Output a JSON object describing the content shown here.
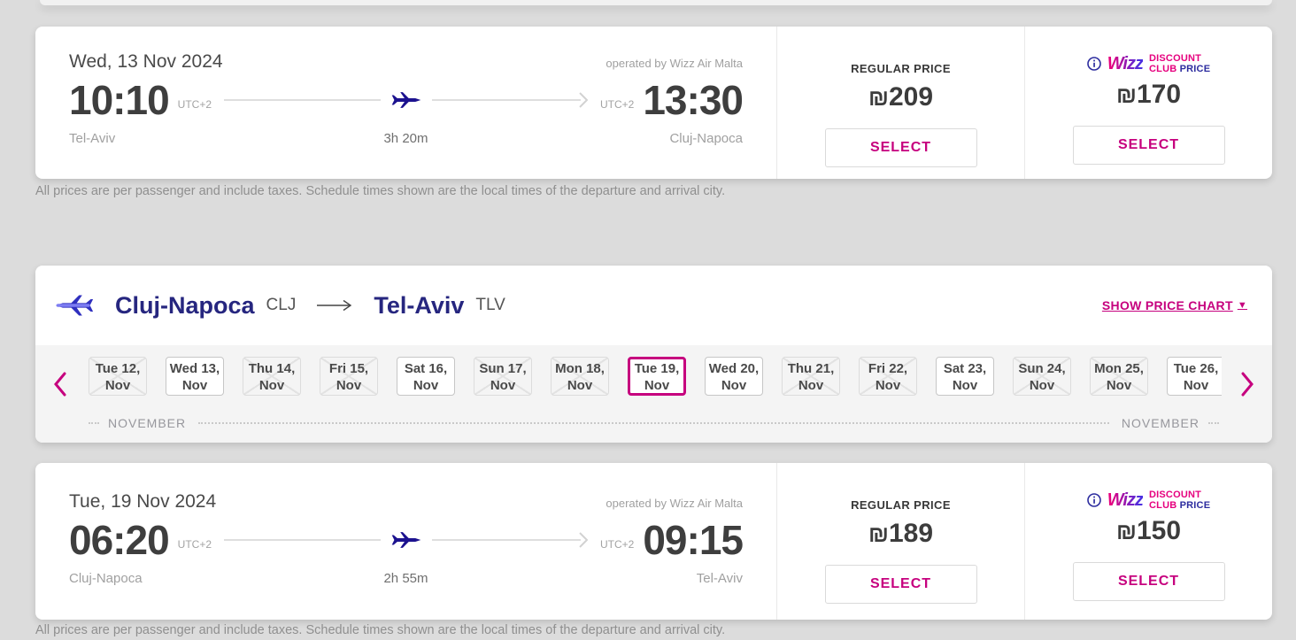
{
  "disclaimer": {
    "text": "All prices are per passenger and include taxes. Schedule times shown are the local times of the departure and arrival city."
  },
  "flights": [
    {
      "date": "Wed, 13 Nov 2024",
      "operated_by": "operated by Wizz Air Malta",
      "departure": {
        "time": "10:10",
        "utc": "UTC+2",
        "city": "Tel-Aviv"
      },
      "arrival": {
        "time": "13:30",
        "utc": "UTC+2",
        "city": "Cluj-Napoca"
      },
      "duration": "3h 20m",
      "regular": {
        "label": "REGULAR PRICE",
        "currency": "₪",
        "amount": "209",
        "select": "SELECT"
      },
      "club": {
        "wizz": "Wizz",
        "discount": "DISCOUNT",
        "club_word": "CLUB",
        "price_word": "PRICE",
        "currency": "₪",
        "amount": "170",
        "select": "SELECT"
      }
    },
    {
      "date": "Tue, 19 Nov 2024",
      "operated_by": "operated by Wizz Air Malta",
      "departure": {
        "time": "06:20",
        "utc": "UTC+2",
        "city": "Cluj-Napoca"
      },
      "arrival": {
        "time": "09:15",
        "utc": "UTC+2",
        "city": "Tel-Aviv"
      },
      "duration": "2h 55m",
      "regular": {
        "label": "REGULAR PRICE",
        "currency": "₪",
        "amount": "189",
        "select": "SELECT"
      },
      "club": {
        "wizz": "Wizz",
        "discount": "DISCOUNT",
        "club_word": "CLUB",
        "price_word": "PRICE",
        "currency": "₪",
        "amount": "150",
        "select": "SELECT"
      }
    }
  ],
  "route_bar": {
    "origin": "Cluj-Napoca",
    "origin_code": "CLJ",
    "destination": "Tel-Aviv",
    "destination_code": "TLV",
    "price_chart_label": "SHOW PRICE CHART",
    "month_left": "NOVEMBER",
    "month_right": "NOVEMBER"
  },
  "carousel": {
    "dates": [
      {
        "line1": "Tue 12,",
        "line2": "Nov",
        "state": "soldout"
      },
      {
        "line1": "Wed 13,",
        "line2": "Nov",
        "state": "available"
      },
      {
        "line1": "Thu 14,",
        "line2": "Nov",
        "state": "soldout"
      },
      {
        "line1": "Fri 15,",
        "line2": "Nov",
        "state": "soldout"
      },
      {
        "line1": "Sat 16,",
        "line2": "Nov",
        "state": "available"
      },
      {
        "line1": "Sun 17,",
        "line2": "Nov",
        "state": "soldout"
      },
      {
        "line1": "Mon 18,",
        "line2": "Nov",
        "state": "soldout"
      },
      {
        "line1": "Tue 19,",
        "line2": "Nov",
        "state": "selected"
      },
      {
        "line1": "Wed 20,",
        "line2": "Nov",
        "state": "available"
      },
      {
        "line1": "Thu 21,",
        "line2": "Nov",
        "state": "soldout"
      },
      {
        "line1": "Fri 22,",
        "line2": "Nov",
        "state": "soldout"
      },
      {
        "line1": "Sat 23,",
        "line2": "Nov",
        "state": "available"
      },
      {
        "line1": "Sun 24,",
        "line2": "Nov",
        "state": "soldout"
      },
      {
        "line1": "Mon 25,",
        "line2": "Nov",
        "state": "soldout"
      },
      {
        "line1": "Tue 26,",
        "line2": "Nov",
        "state": "available"
      }
    ]
  },
  "colors": {
    "magenta": "#c6007e",
    "indigo": "#26267f",
    "plane_navy": "#1c128f"
  }
}
